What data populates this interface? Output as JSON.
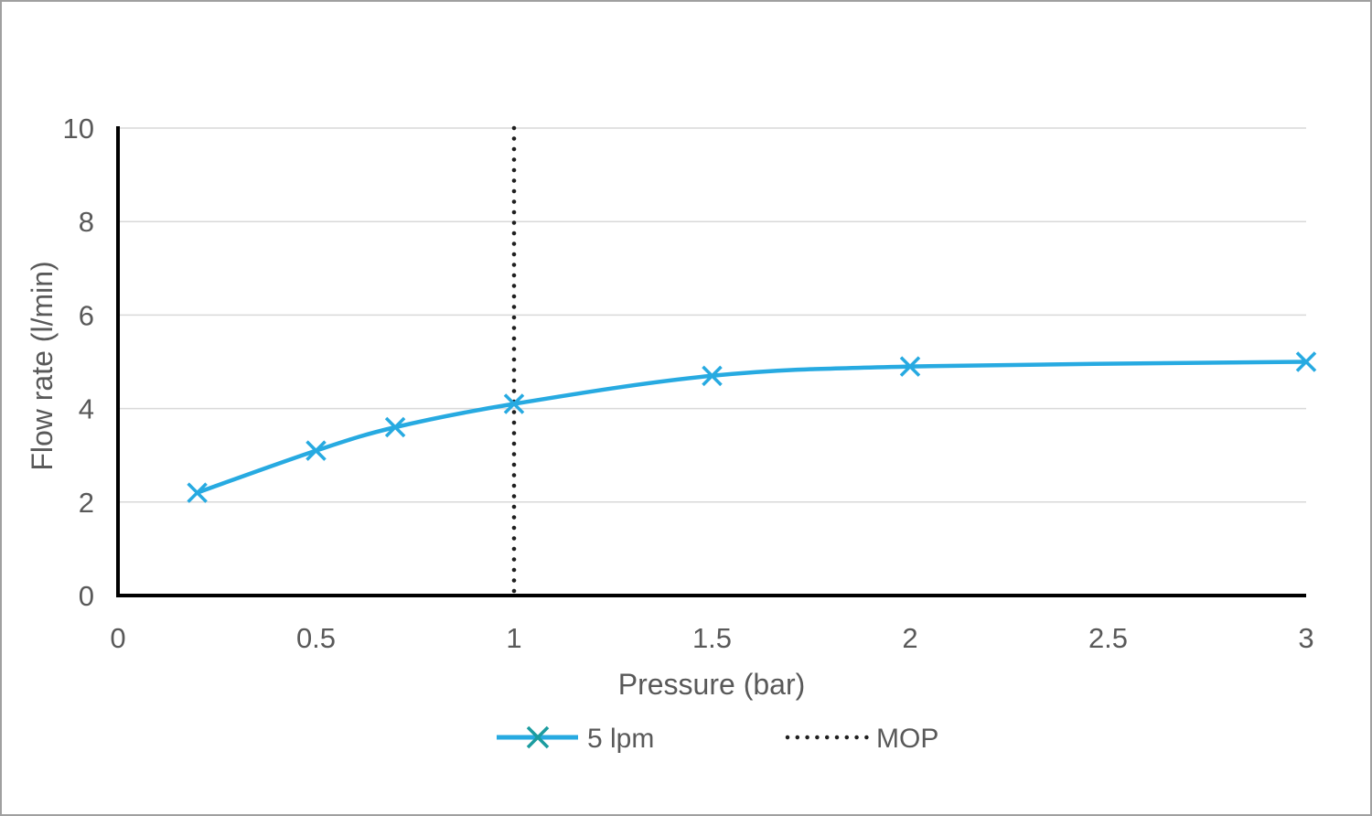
{
  "frame": {
    "background_color": "#FFFFFF",
    "border_color": "#A0A0A0"
  },
  "chart_data": {
    "type": "line",
    "title": "",
    "xlabel": "Pressure (bar)",
    "ylabel": "Flow rate (l/min)",
    "xlim": [
      0,
      3
    ],
    "ylim": [
      0,
      10
    ],
    "x_ticks": [
      0,
      0.5,
      1,
      1.5,
      2,
      2.5,
      3
    ],
    "x_tick_labels": [
      "0",
      "0.5",
      "1",
      "1.5",
      "2",
      "2.5",
      "3"
    ],
    "y_ticks": [
      0,
      2,
      4,
      6,
      8,
      10
    ],
    "y_tick_labels": [
      "0",
      "2",
      "4",
      "6",
      "8",
      "10"
    ],
    "grid": "horizontal",
    "grid_y_values": [
      2,
      4,
      6,
      8,
      10
    ],
    "legend_position": "bottom",
    "series": [
      {
        "name": "5 lpm",
        "type": "smooth-line",
        "marker": "x",
        "color": "#27AAE1",
        "points": [
          [
            0.2,
            2.2
          ],
          [
            0.5,
            3.1
          ],
          [
            0.7,
            3.6
          ],
          [
            1.0,
            4.1
          ],
          [
            1.5,
            4.7
          ],
          [
            2.0,
            4.9
          ],
          [
            3.0,
            5.0
          ]
        ]
      },
      {
        "name": "MOP",
        "type": "vertical-dotted-line",
        "color": "#1F1F1F",
        "x": 1.0,
        "y_from": 0,
        "y_to": 10
      }
    ],
    "colors": {
      "series_line": "#27AAE1",
      "series_marker": "#27AAE1",
      "legend_marker_x": "#1B9C9F",
      "mop_dots": "#1F1F1F",
      "axis_line": "#000000",
      "gridline": "#D9D9D9",
      "text": "#595959"
    }
  }
}
